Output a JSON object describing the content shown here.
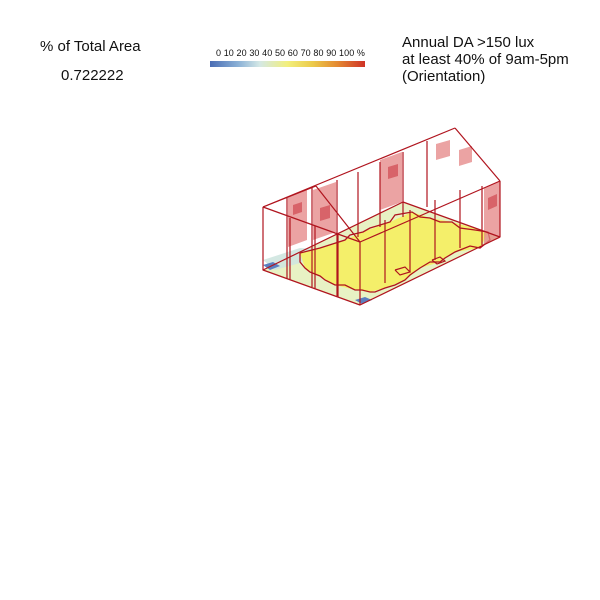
{
  "metric": {
    "label": "% of Total Area",
    "value": "0.722222"
  },
  "legend": {
    "ticks_text": "0 10 20 30 40 50 60 70 80 90 100 %",
    "gradient_colors": [
      "#4a6db4",
      "#8ab0d6",
      "#d4e8e6",
      "#f2ef7c",
      "#eccb4a",
      "#e48a32",
      "#cf3226"
    ]
  },
  "title": {
    "line1": "Annual DA >150 lux",
    "line2": "at least 40% of 9am-5pm",
    "line3": "(Orientation)"
  },
  "colors": {
    "wireframe": "#b0141e",
    "window_fill": "#e58585",
    "floor_yellow": "#f4ef6a",
    "floor_pale": "#e8f2c4",
    "floor_blue": "#5b7fc0"
  }
}
